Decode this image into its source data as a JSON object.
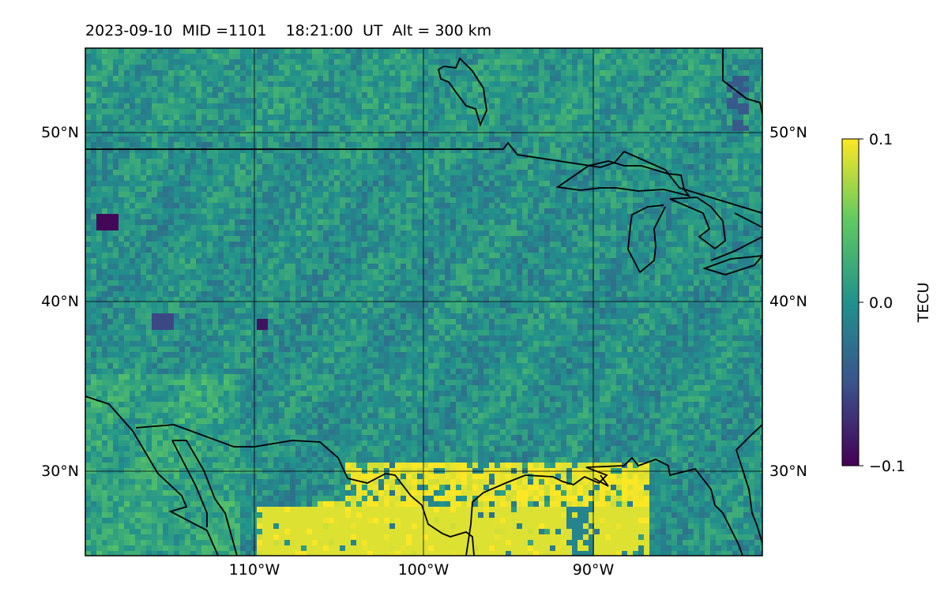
{
  "title": "2023-09-10  MID =1101    18:21:00  UT  Alt = 300 km",
  "map": {
    "lon_range": [
      -119,
      -79
    ],
    "lat_range": [
      25,
      55
    ],
    "meridians": [
      -110,
      -100,
      -90
    ],
    "parallels": [
      30,
      40,
      50
    ],
    "lon_labels": [
      "110°W",
      "100°W",
      "90°W"
    ],
    "lat_labels": [
      "30°N",
      "40°N",
      "50°N"
    ],
    "coastline_color": "#000000"
  },
  "colorbar": {
    "label": "TECU",
    "min": -0.1,
    "max": 0.1,
    "tick_labels": [
      "0.1",
      "0.0",
      "−0.1"
    ],
    "colormap": "viridis",
    "colors": [
      "#440154",
      "#3b528b",
      "#21918c",
      "#5ec962",
      "#fde725"
    ]
  }
}
